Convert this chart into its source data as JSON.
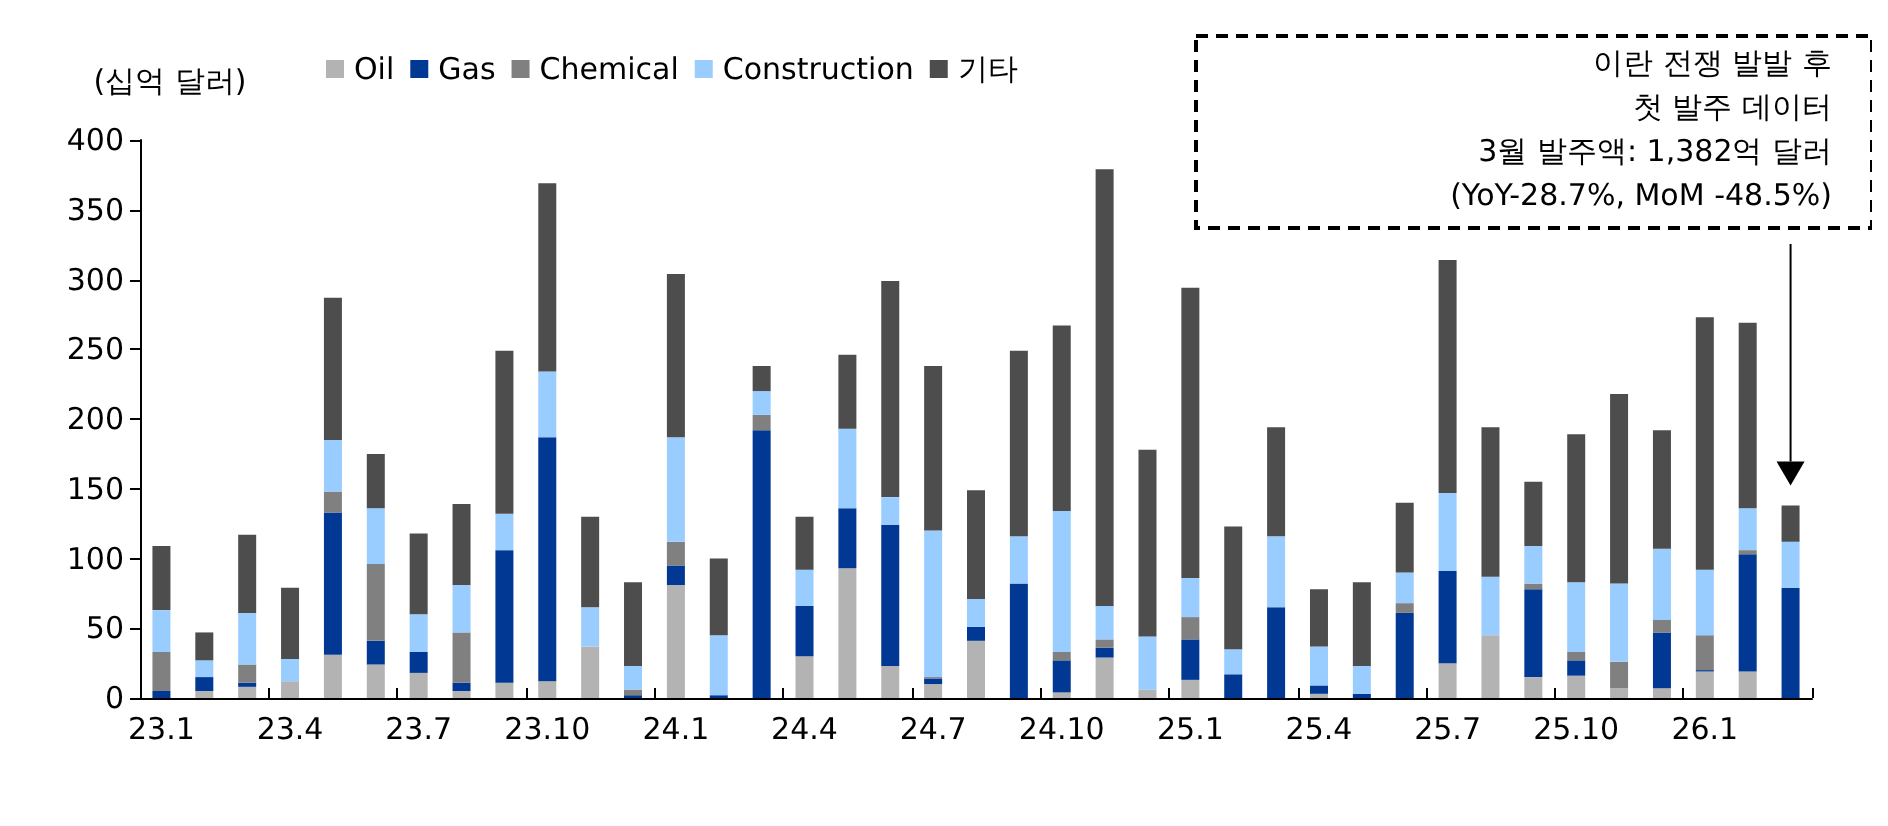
{
  "chart_data": {
    "type": "bar",
    "stacked": true,
    "ylabel": "(십억 달러)",
    "legend": "top",
    "grid": false,
    "categories": [
      "23.1",
      null,
      null,
      "23.4",
      null,
      null,
      "23.7",
      null,
      null,
      "23.10",
      null,
      null,
      "24.1",
      null,
      null,
      "24.4",
      null,
      null,
      "24.7",
      null,
      null,
      "24.10",
      null,
      null,
      "25.1",
      null,
      null,
      "25.4",
      null,
      null,
      "25.7",
      null,
      null,
      "25.10",
      null,
      null,
      "26.1",
      null,
      null
    ],
    "ylim": [
      0,
      400
    ],
    "yticks": [
      0,
      50,
      100,
      150,
      200,
      250,
      300,
      350,
      400
    ],
    "series": [
      {
        "name": "Oil",
        "color": "#b3b3b3",
        "values": [
          0,
          5,
          8,
          12,
          31,
          24,
          18,
          5,
          11,
          12,
          37,
          0,
          81,
          0,
          0,
          30,
          93,
          23,
          10,
          41,
          0,
          4,
          29,
          6,
          13,
          0,
          0,
          3,
          0,
          0,
          25,
          45,
          15,
          16,
          7,
          7,
          19,
          19,
          0
        ]
      },
      {
        "name": "Gas",
        "color": "#003893",
        "values": [
          5,
          10,
          3,
          0,
          102,
          17,
          15,
          6,
          95,
          175,
          0,
          2,
          14,
          2,
          192,
          36,
          43,
          101,
          4,
          10,
          82,
          23,
          7,
          0,
          29,
          17,
          65,
          6,
          3,
          61,
          66,
          0,
          63,
          11,
          0,
          40,
          1,
          84,
          79
        ]
      },
      {
        "name": "Chemical",
        "color": "#808080",
        "values": [
          28,
          0,
          13,
          0,
          15,
          55,
          0,
          36,
          0,
          0,
          0,
          4,
          17,
          0,
          11,
          0,
          0,
          0,
          1,
          0,
          0,
          6,
          6,
          0,
          16,
          0,
          0,
          0,
          0,
          7,
          0,
          0,
          4,
          6,
          19,
          9,
          25,
          3,
          0
        ]
      },
      {
        "name": "Construction",
        "color": "#99ccff",
        "values": [
          30,
          12,
          37,
          16,
          37,
          40,
          27,
          34,
          26,
          47,
          28,
          17,
          75,
          43,
          17,
          26,
          57,
          20,
          105,
          20,
          34,
          101,
          24,
          38,
          28,
          18,
          51,
          28,
          20,
          22,
          56,
          42,
          27,
          50,
          56,
          51,
          47,
          30,
          33
        ]
      },
      {
        "name": "기타",
        "color": "#4d4d4d",
        "values": [
          46,
          20,
          56,
          51,
          102,
          39,
          58,
          58,
          117,
          135,
          65,
          60,
          117,
          55,
          18,
          38,
          53,
          155,
          118,
          78,
          133,
          133,
          313,
          134,
          208,
          88,
          78,
          41,
          60,
          50,
          167,
          107,
          46,
          106,
          136,
          85,
          181,
          133,
          26
        ]
      }
    ],
    "annotations": [
      "이란 전쟁 발발 후",
      "첫 발주 데이터",
      "3월 발주액: 1,382억 달러",
      "(YoY-28.7%, MoM -48.5%)"
    ]
  }
}
